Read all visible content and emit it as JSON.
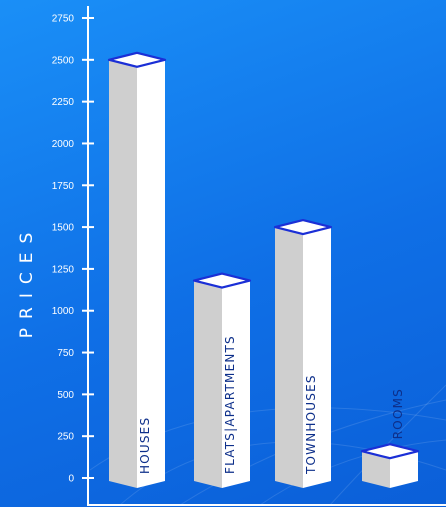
{
  "chart_data": {
    "type": "bar",
    "ylabel": "PRICES",
    "xlabel": "",
    "categories": [
      "HOUSES",
      "FLATS|APARTMENTS",
      "TOWNHOUSES",
      "ROOMS"
    ],
    "values": [
      2500,
      1180,
      1500,
      160
    ],
    "ylim": [
      0,
      2750
    ],
    "yticks": [
      0,
      250,
      500,
      750,
      1000,
      1250,
      1500,
      1750,
      2000,
      2250,
      2500,
      2750
    ],
    "grid": false,
    "style": "3d-isometric-bars",
    "colors": {
      "background": "#1583f2",
      "axis": "#ffffff",
      "bar_front": "#ffffff",
      "bar_side": "#cfcfcf",
      "bar_top": "#ffffff",
      "bar_top_edge": "#1b2fd6",
      "label": "#0d2f8a"
    }
  }
}
